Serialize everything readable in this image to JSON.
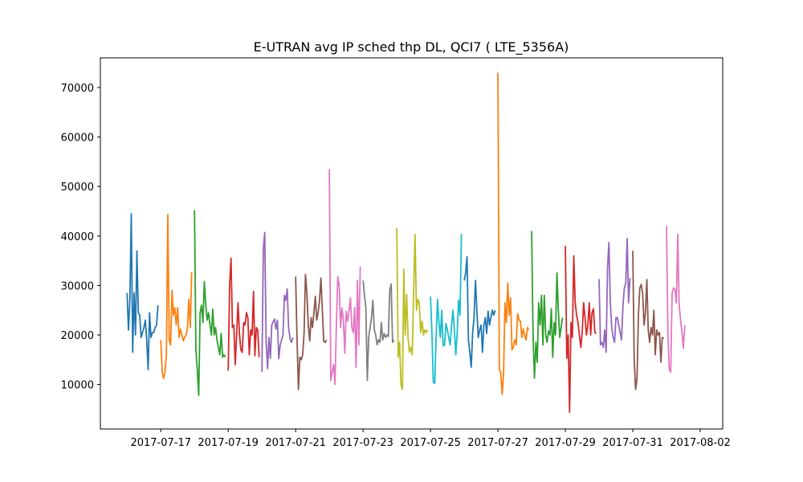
{
  "chart_data": {
    "type": "line",
    "title": "E-UTRAN avg IP sched thp DL, QCI7 ( LTE_5356A)",
    "xlabel": "",
    "ylabel": "",
    "xlim": [
      "2017-07-15T05:00",
      "2017-08-02T16:00"
    ],
    "ylim": [
      1000,
      76000
    ],
    "x_ticks": [
      "2017-07-17",
      "2017-07-19",
      "2017-07-21",
      "2017-07-23",
      "2017-07-25",
      "2017-07-27",
      "2017-07-29",
      "2017-07-31",
      "2017-08-02"
    ],
    "y_ticks": [
      10000,
      20000,
      30000,
      40000,
      50000,
      60000,
      70000
    ],
    "legend": "none",
    "grid": false,
    "colors": [
      "#1f77b4",
      "#ff7f0e",
      "#2ca02c",
      "#d62728",
      "#9467bd",
      "#8c564b",
      "#e377c2",
      "#7f7f7f",
      "#bcbd22",
      "#17becf"
    ],
    "series": [
      {
        "start": "2017-07-16T00:00",
        "values": [
          28500,
          21000,
          27000,
          44500,
          16500,
          28500,
          20000,
          37000,
          24500,
          24000,
          19500,
          20500,
          21500,
          23000,
          19000,
          13000,
          24500,
          19500,
          20500,
          20500,
          21500,
          22000,
          26000
        ]
      },
      {
        "start": "2017-07-17T00:00",
        "values": [
          19000,
          12500,
          11200,
          12500,
          16000,
          44300,
          19000,
          18000,
          29000,
          24000,
          25500,
          22000,
          25500,
          19500,
          21200,
          20000,
          18800,
          19500,
          20000,
          21500,
          27200,
          21500,
          32700
        ]
      },
      {
        "start": "2017-07-18T00:00",
        "values": [
          45200,
          17000,
          13000,
          7800,
          24500,
          26000,
          22500,
          30800,
          26000,
          23000,
          24500,
          22000,
          20000,
          25200,
          20000,
          21500,
          19000,
          17500,
          16000,
          20300,
          15500,
          16000,
          15500
        ]
      },
      {
        "start": "2017-07-19T00:00",
        "values": [
          12800,
          30000,
          35500,
          21500,
          22000,
          14000,
          20000,
          26500,
          20200,
          17000,
          16500,
          22500,
          22000,
          24500,
          23500,
          16000,
          21000,
          20000,
          28800,
          15800,
          21500,
          21000,
          15500
        ]
      },
      {
        "start": "2017-07-20T00:00",
        "values": [
          12500,
          37500,
          40700,
          18500,
          13200,
          19500,
          15300,
          22000,
          22700,
          23200,
          21200,
          23000,
          15200,
          18000,
          19000,
          20000,
          28000,
          27000,
          29300,
          21500,
          19300,
          18500,
          19500
        ]
      },
      {
        "start": "2017-07-21T00:00",
        "values": [
          31800,
          19000,
          9000,
          15500,
          15000,
          16000,
          20300,
          32200,
          28500,
          22000,
          18800,
          23500,
          21500,
          24500,
          27800,
          23000,
          24500,
          27000,
          31500,
          25000,
          18700,
          18500,
          19000
        ]
      },
      {
        "start": "2017-07-22T00:00",
        "values": [
          53500,
          10800,
          12500,
          14000,
          10000,
          22000,
          31800,
          30000,
          21500,
          25500,
          23000,
          16300,
          24800,
          22800,
          24800,
          27500,
          21500,
          20500,
          25500,
          13500,
          31000,
          18000,
          33800
        ]
      },
      {
        "start": "2017-07-23T00:00",
        "values": [
          31000,
          28000,
          25500,
          10800,
          19500,
          21500,
          23500,
          27000,
          21000,
          20000,
          18000,
          19000,
          18500,
          22500,
          19000,
          20300,
          19500,
          20000,
          19700,
          29000,
          30300,
          18500,
          19000
        ]
      },
      {
        "start": "2017-07-24T00:00",
        "values": [
          41600,
          15500,
          18500,
          10000,
          9000,
          33300,
          20000,
          28200,
          19500,
          16500,
          17500,
          16000,
          29000,
          40300,
          25000,
          27200,
          26500,
          20500,
          22800,
          20000,
          21000,
          20500,
          21000
        ]
      },
      {
        "start": "2017-07-25T00:00",
        "values": [
          27800,
          20500,
          10500,
          10200,
          19500,
          27200,
          22500,
          19500,
          25000,
          17800,
          18000,
          22300,
          21000,
          19500,
          18000,
          22000,
          25000,
          21000,
          16000,
          20500,
          27000,
          24000,
          40400
        ]
      },
      {
        "start": "2017-07-26T00:00",
        "values": [
          31000,
          32500,
          35800,
          19000,
          16500,
          13500,
          20500,
          23500,
          31000,
          25000,
          19500,
          21000,
          22000,
          16500,
          22000,
          23500,
          20300,
          24800,
          22000,
          23500,
          25000,
          24000,
          25000
        ]
      },
      {
        "start": "2017-07-27T00:00",
        "values": [
          73000,
          13000,
          12500,
          8000,
          12000,
          26500,
          22500,
          30500,
          24000,
          27500,
          17000,
          17500,
          19000,
          18000,
          24300,
          23000,
          22800,
          19500,
          21200,
          20000,
          19000,
          21500,
          21000
        ]
      },
      {
        "start": "2017-07-28T00:00",
        "values": [
          41000,
          20000,
          11300,
          18500,
          14500,
          26500,
          22000,
          28000,
          18000,
          28000,
          20000,
          18500,
          20800,
          20000,
          25300,
          15500,
          22500,
          20000,
          32500,
          25000,
          19500,
          21500,
          23500
        ]
      },
      {
        "start": "2017-07-29T00:00",
        "values": [
          38000,
          15300,
          20000,
          4400,
          22500,
          19500,
          36000,
          26500,
          24000,
          22500,
          20000,
          17500,
          20500,
          26500,
          23500,
          20000,
          22000,
          26500,
          20000,
          24500,
          25300,
          20500,
          20300
        ]
      },
      {
        "start": "2017-07-30T00:00",
        "values": [
          31300,
          18000,
          18500,
          17500,
          21000,
          16500,
          33500,
          38700,
          26500,
          21500,
          19500,
          18500,
          23500,
          23500,
          22000,
          20500,
          19000,
          26000,
          29500,
          30500,
          39500,
          26500,
          31500
        ]
      },
      {
        "start": "2017-07-31T00:00",
        "values": [
          37000,
          15000,
          9000,
          11000,
          24000,
          29500,
          30200,
          28500,
          22000,
          24500,
          31200,
          21000,
          18500,
          21500,
          20000,
          25000,
          16000,
          21000,
          20000,
          20500,
          14500,
          19500,
          19300
        ]
      },
      {
        "start": "2017-08-01T00:00",
        "values": [
          42000,
          20000,
          13000,
          12500,
          28500,
          29500,
          29200,
          26500,
          40300,
          26000,
          23000,
          20500,
          17300,
          22000
        ]
      }
    ]
  }
}
